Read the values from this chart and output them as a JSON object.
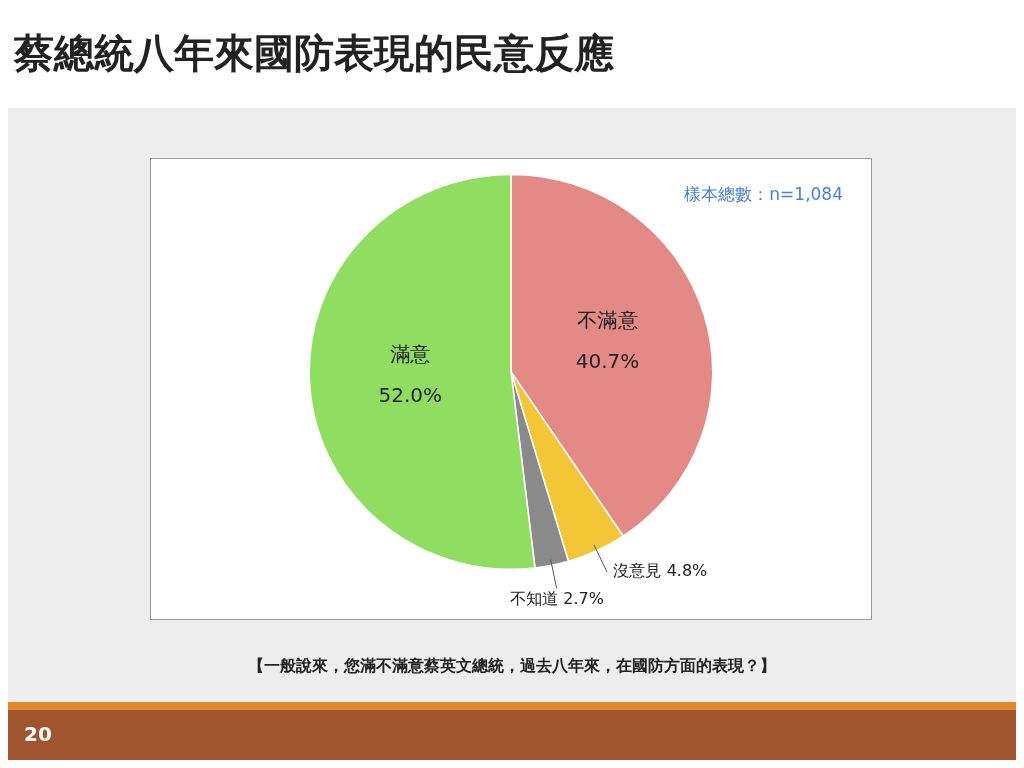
{
  "chart_data": {
    "type": "pie",
    "title": "蔡總統八年來國防表現的民意反應",
    "categories": [
      "不滿意",
      "沒意見",
      "不知道",
      "滿意"
    ],
    "values": [
      40.7,
      4.8,
      2.7,
      52.0
    ],
    "value_labels": [
      "40.7%",
      "4.8%",
      "2.7%",
      "52.0%"
    ],
    "colors": [
      "#e38a86",
      "#f2c637",
      "#8a8a8a",
      "#8fde62"
    ],
    "legend": false,
    "annotations": [
      "樣本總數：n=1,084",
      "【一般說來，您滿不滿意蔡英文總統，過去八年來，在國防方面的表現？】",
      "20"
    ]
  }
}
